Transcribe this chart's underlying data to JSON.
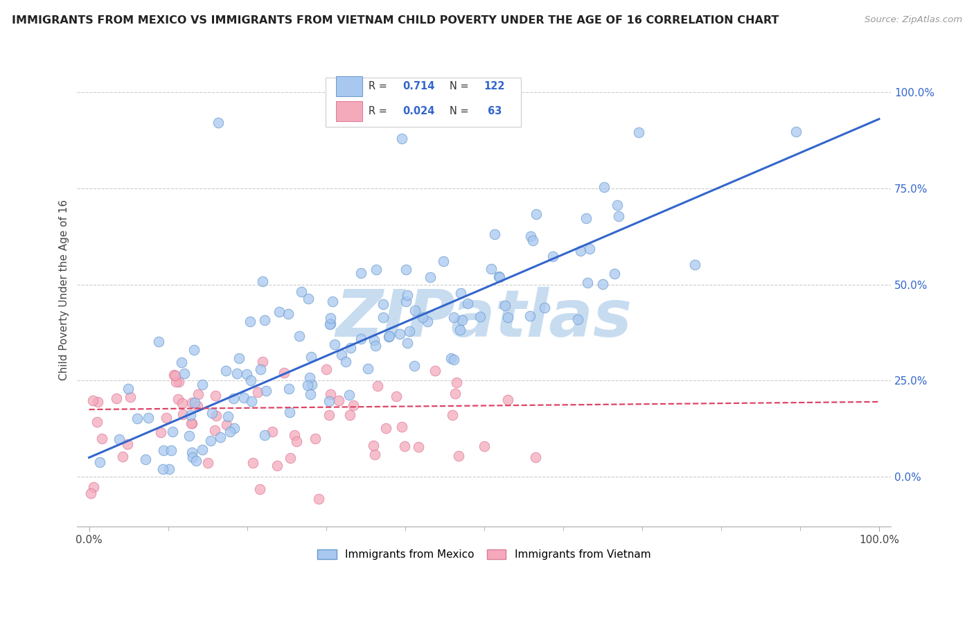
{
  "title": "IMMIGRANTS FROM MEXICO VS IMMIGRANTS FROM VIETNAM CHILD POVERTY UNDER THE AGE OF 16 CORRELATION CHART",
  "source": "Source: ZipAtlas.com",
  "ylabel": "Child Poverty Under the Age of 16",
  "mexico_R": 0.714,
  "mexico_N": 122,
  "vietnam_R": 0.024,
  "vietnam_N": 63,
  "mexico_color": "#A8C8F0",
  "mexico_edge": "#6699CC",
  "vietnam_color": "#F4AABB",
  "vietnam_edge": "#DD7799",
  "line_mexico_color": "#3366CC",
  "line_vietnam_color": "#DD4466",
  "ytick_labels": [
    "0.0%",
    "25.0%",
    "50.0%",
    "75.0%",
    "100.0%"
  ],
  "ytick_values": [
    0.0,
    0.25,
    0.5,
    0.75,
    1.0
  ],
  "xtick_labels_bottom": [
    "0.0%",
    "100.0%"
  ],
  "watermark_text": "ZIPatlas",
  "watermark_color": "#C8DCF0",
  "legend_box_color": "#EEEEEE",
  "background": "#FFFFFF"
}
